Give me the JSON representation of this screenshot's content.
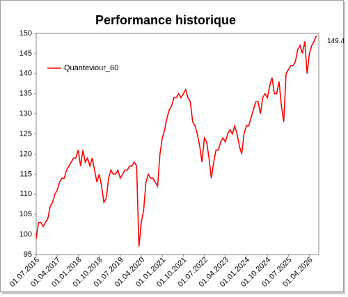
{
  "chart_data": {
    "type": "line",
    "title": "Performance historique",
    "x": [
      "01.07.2016",
      "01.08.2016",
      "01.09.2016",
      "01.10.2016",
      "01.11.2016",
      "01.12.2016",
      "01.01.2017",
      "01.02.2017",
      "01.03.2017",
      "01.04.2017",
      "01.05.2017",
      "01.06.2017",
      "01.07.2017",
      "01.08.2017",
      "01.09.2017",
      "01.10.2017",
      "01.11.2017",
      "01.12.2017",
      "01.01.2018",
      "01.02.2018",
      "01.03.2018",
      "01.04.2018",
      "01.05.2018",
      "01.06.2018",
      "01.07.2018",
      "01.08.2018",
      "01.09.2018",
      "01.10.2018",
      "01.11.2018",
      "01.12.2018",
      "01.01.2019",
      "01.02.2019",
      "01.03.2019",
      "01.04.2019",
      "01.05.2019",
      "01.06.2019",
      "01.07.2019",
      "01.08.2019",
      "01.09.2019",
      "01.10.2019",
      "01.11.2019",
      "01.12.2019",
      "01.01.2020",
      "01.02.2020",
      "01.03.2020",
      "01.04.2020",
      "01.05.2020",
      "01.06.2020",
      "01.07.2020",
      "01.08.2020",
      "01.09.2020",
      "01.10.2020",
      "01.11.2020",
      "01.12.2020",
      "01.01.2021",
      "01.02.2021",
      "01.03.2021",
      "01.04.2021",
      "01.05.2021",
      "01.06.2021",
      "01.07.2021",
      "01.08.2021",
      "01.09.2021",
      "01.10.2021",
      "01.11.2021",
      "01.12.2021",
      "01.01.2022",
      "01.02.2022",
      "01.03.2022",
      "01.04.2022",
      "01.05.2022",
      "01.06.2022",
      "01.07.2022",
      "01.08.2022",
      "01.09.2022",
      "01.10.2022",
      "01.11.2022",
      "01.12.2022",
      "01.01.2023",
      "01.02.2023",
      "01.03.2023",
      "01.04.2023",
      "01.05.2023",
      "01.06.2023",
      "01.07.2023",
      "01.08.2023",
      "01.09.2023",
      "01.10.2023",
      "01.11.2023",
      "01.12.2023",
      "01.01.2024",
      "01.02.2024",
      "01.03.2024",
      "01.04.2024",
      "01.05.2024",
      "01.06.2024",
      "01.07.2024",
      "01.08.2024",
      "01.09.2024",
      "01.10.2024",
      "01.11.2024",
      "01.12.2024",
      "01.01.2025",
      "01.02.2025",
      "01.03.2025",
      "01.04.2025",
      "01.05.2025",
      "01.06.2025",
      "01.07.2025",
      "01.08.2025",
      "01.09.2025",
      "01.10.2025",
      "01.11.2025",
      "01.12.2025",
      "01.01.2026",
      "01.02.2026",
      "01.03.2026",
      "01.04.2026",
      "01.05.2026",
      "01.06.2026",
      "01.07.2026"
    ],
    "series": [
      {
        "name": "Quanteviour_60",
        "color": "#ff0000",
        "values": [
          99,
          103,
          103,
          102,
          103,
          104,
          107,
          108,
          110,
          111,
          113,
          114,
          114,
          116,
          117,
          118,
          119,
          119,
          121,
          117,
          121,
          118,
          119,
          117,
          119,
          116,
          113,
          115,
          112,
          108,
          109,
          114,
          116,
          115,
          115,
          116,
          114,
          115,
          116,
          116,
          117,
          117,
          118,
          117,
          97,
          103,
          106,
          113,
          115,
          114,
          114,
          113,
          112,
          120,
          124,
          126,
          129,
          131,
          132,
          134,
          134,
          135,
          134,
          135,
          136,
          134,
          133,
          128,
          127,
          125,
          122,
          118,
          124,
          123,
          119,
          114,
          118,
          121,
          121,
          123,
          124,
          123,
          125,
          126,
          125,
          127,
          125,
          122,
          120,
          125,
          127,
          127,
          129,
          131,
          133,
          133,
          130,
          134,
          135,
          134,
          137,
          139,
          135,
          135,
          138,
          132,
          128,
          140,
          141,
          142,
          142,
          143,
          146,
          147,
          145,
          148,
          140,
          145,
          147,
          148,
          149.4
        ]
      }
    ],
    "annotation": "149.4",
    "xlim": [
      "01.07.2016",
      "01.08.2026"
    ],
    "xticks": [
      "01.07.2016",
      "01.04.2017",
      "01.01.2018",
      "01.10.2018",
      "01.07.2019",
      "01.04.2020",
      "01.01.2021",
      "01.10.2021",
      "01.07.2022",
      "01.04.2023",
      "01.01.2024",
      "01.10.2024",
      "01.07.2025",
      "01.04.2026"
    ],
    "ylim": [
      95,
      150
    ],
    "yticks": [
      95,
      100,
      105,
      110,
      115,
      120,
      125,
      130,
      135,
      140,
      145,
      150
    ],
    "grid": false,
    "legend": "upper left"
  }
}
